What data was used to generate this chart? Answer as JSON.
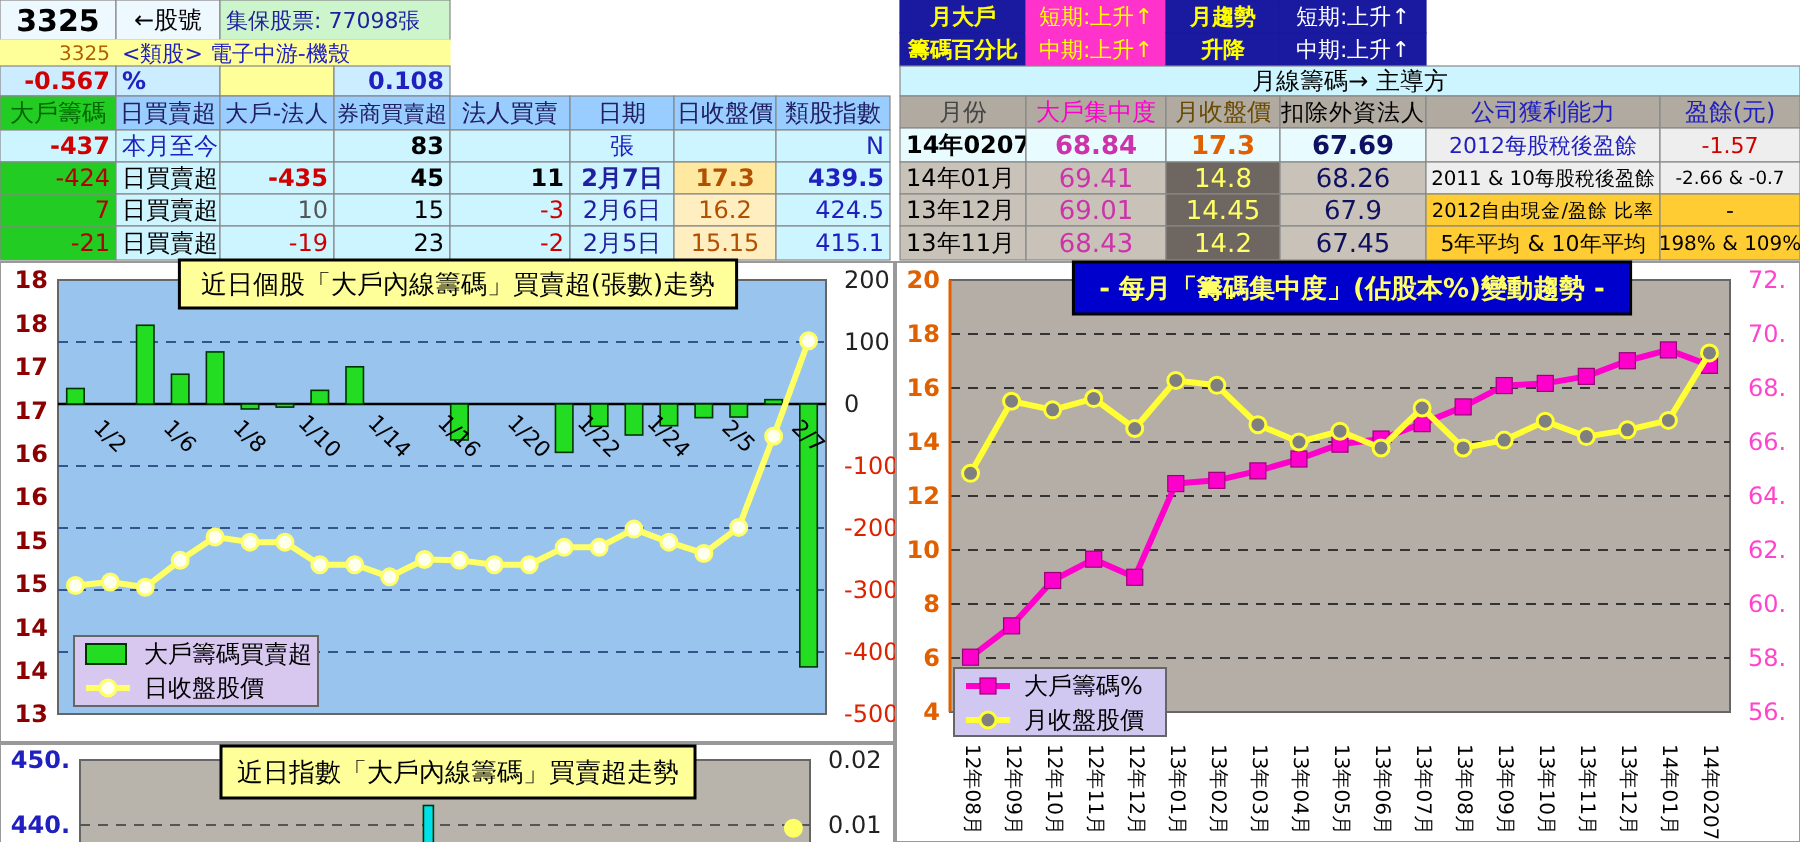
{
  "chart_data": [
    {
      "type": "other",
      "annotations": [
        "3325",
        "←股號",
        "集保股票: 77098張",
        "3325",
        "<類股> 電子中游-機殼",
        "-0.567",
        "%",
        "0.108",
        "大戶籌碼",
        "日買賣超",
        "大戶-法人",
        "券商買賣超",
        "法人買賣",
        "日期",
        "日收盤價",
        "類股指數",
        "-437",
        "本月至今",
        "83",
        "張",
        "N",
        "-424",
        "日買賣超",
        "-435",
        "45",
        "11",
        "2月7日",
        "17.3",
        "439.5",
        "7",
        "日買賣超",
        "10",
        "15",
        "-3",
        "2月6日",
        "16.2",
        "424.5",
        "-21",
        "日買賣超",
        "-19",
        "23",
        "-2",
        "2月5日",
        "15.15",
        "415.1"
      ]
    },
    {
      "type": "other",
      "annotations": [
        "月大戶",
        "籌碼百分比",
        "短期:上升↑",
        "中期:上升↑",
        "月趨勢",
        "升降",
        "短期:上升↑",
        "中期:上升↑",
        "月線籌碼→ 主導方",
        "月份",
        "大戶集中度",
        "月收盤價",
        "扣除外資法人",
        "公司獲利能力",
        "盈餘(元)",
        "14年0207",
        "68.84",
        "17.3",
        "67.69",
        "2012每股稅後盈餘",
        "-1.57",
        "14年01月",
        "69.41",
        "14.8",
        "68.26",
        "2011 & 10每股稅後盈餘",
        "-2.66 & -0.7",
        "13年12月",
        "69.01",
        "14.45",
        "67.9",
        "2012自由現金/盈餘 比率",
        "-",
        "13年11月",
        "68.43",
        "14.2",
        "67.45",
        "5年平均 & 10年平均",
        "198% & 109%"
      ]
    },
    {
      "type": "bar",
      "title": "近日個股「大戶內線籌碼」買賣超(張數)走勢",
      "categories": [
        null,
        "1/2",
        null,
        "1/6",
        null,
        "1/8",
        null,
        "1/10",
        null,
        "1/14",
        null,
        "1/16",
        null,
        "1/20",
        null,
        "1/22",
        null,
        "1/24",
        null,
        "2/5",
        null,
        "2/7"
      ],
      "series": [
        {
          "name": "大戶籌碼買賣超",
          "type": "bar",
          "axis": "y2",
          "color": "#22dd22",
          "values": [
            25,
            null,
            127,
            48,
            84,
            -8,
            -5,
            22,
            60,
            null,
            null,
            -58,
            null,
            null,
            -78,
            -36,
            -50,
            -35,
            -22,
            -21,
            7,
            -424
          ]
        },
        {
          "name": "日收盤股價",
          "type": "line",
          "color": "#ffff66",
          "marker": "circle",
          "values": [
            14.48,
            14.52,
            14.46,
            14.77,
            15.04,
            14.98,
            14.98,
            14.72,
            14.72,
            14.58,
            14.78,
            14.77,
            14.72,
            14.72,
            14.92,
            14.92,
            15.13,
            14.98,
            14.85,
            15.15,
            16.2,
            17.3
          ]
        }
      ],
      "ylim": [
        13,
        18
      ],
      "yticks": [
        13,
        {
          "value": 13.5,
          "label": "14"
        },
        14,
        {
          "value": 14.5,
          "label": "15"
        },
        15,
        {
          "value": 15.5,
          "label": "16"
        },
        16,
        {
          "value": 16.5,
          "label": "17"
        },
        17,
        {
          "value": 17.5,
          "label": "18"
        },
        18
      ],
      "y2lim": [
        -500,
        200
      ],
      "y2ticks": [
        200,
        100,
        0,
        -100,
        -200,
        -300,
        -400,
        -500
      ],
      "grid": true,
      "legend": "bottom left"
    },
    {
      "type": "line",
      "title": "- 每月「籌碼集中度」(佔股本%)變動趨勢 -",
      "categories": [
        "12年08月",
        "12年09月",
        "12年10月",
        "12年11月",
        "12年12月",
        "13年01月",
        "13年02月",
        "13年03月",
        "13年04月",
        "13年05月",
        "13年06月",
        "13年07月",
        "13年08月",
        "13年09月",
        "13年10月",
        "13年11月",
        "13年12月",
        "14年01月",
        "14年0207"
      ],
      "series": [
        {
          "name": "大戶籌碼%",
          "color": "#ff00cc",
          "axis": "y2",
          "marker": "square",
          "values": [
            58.03,
            59.19,
            60.87,
            61.66,
            60.99,
            64.46,
            64.58,
            64.93,
            65.37,
            65.92,
            66.11,
            66.68,
            67.3,
            68.09,
            68.17,
            68.43,
            69.01,
            69.41,
            68.84
          ]
        },
        {
          "name": "月收盤股價",
          "color": "#ffff33",
          "marker": "circle",
          "values": [
            12.84,
            15.51,
            15.19,
            15.61,
            14.5,
            16.28,
            16.1,
            14.64,
            14,
            14.4,
            13.78,
            15.26,
            13.78,
            14.07,
            14.77,
            14.2,
            14.45,
            14.8,
            17.3
          ]
        }
      ],
      "ylim": [
        4,
        20
      ],
      "yticks": [
        4,
        6,
        8,
        10,
        12,
        14,
        16,
        18,
        20
      ],
      "y2lim": [
        56,
        72
      ],
      "y2ticks": [
        {
          "value": 56,
          "label": "56."
        },
        {
          "value": 58,
          "label": "58."
        },
        {
          "value": 60,
          "label": "60."
        },
        {
          "value": 62,
          "label": "62."
        },
        {
          "value": 64,
          "label": "64."
        },
        {
          "value": 66,
          "label": "66."
        },
        {
          "value": 68,
          "label": "68."
        },
        {
          "value": 70,
          "label": "70."
        },
        {
          "value": 72,
          "label": "72."
        }
      ],
      "grid": true,
      "legend": "bottom left"
    },
    {
      "type": "bar",
      "title": "近日指數「大戶內線籌碼」買賣超走勢",
      "categories": [
        null,
        null,
        null,
        null,
        null,
        null,
        null,
        null,
        null,
        null,
        null,
        null,
        null,
        null,
        null,
        null,
        null,
        null,
        null,
        null,
        null,
        null
      ],
      "series": [
        {
          "type": "bar",
          "axis": "y2",
          "color": "#00e0e8",
          "values": [
            null,
            null,
            null,
            null,
            null,
            null,
            null,
            null,
            null,
            null,
            0.013,
            null,
            null,
            null,
            null,
            null,
            null,
            null,
            null,
            null,
            null,
            null
          ]
        },
        {
          "type": "scatter",
          "color": "#ffff66",
          "marker": "circle",
          "values": [
            null,
            null,
            null,
            null,
            null,
            null,
            null,
            null,
            null,
            null,
            null,
            null,
            null,
            null,
            null,
            null,
            null,
            null,
            null,
            null,
            null,
            439.5
          ]
        }
      ],
      "ylim": [
        430,
        450
      ],
      "yticks": [
        {
          "value": 450,
          "label": "450."
        },
        {
          "value": 440,
          "label": "440."
        }
      ],
      "y2lim": [
        0,
        0.02
      ],
      "y2ticks": [
        0.02,
        0.01
      ],
      "grid": true
    }
  ]
}
